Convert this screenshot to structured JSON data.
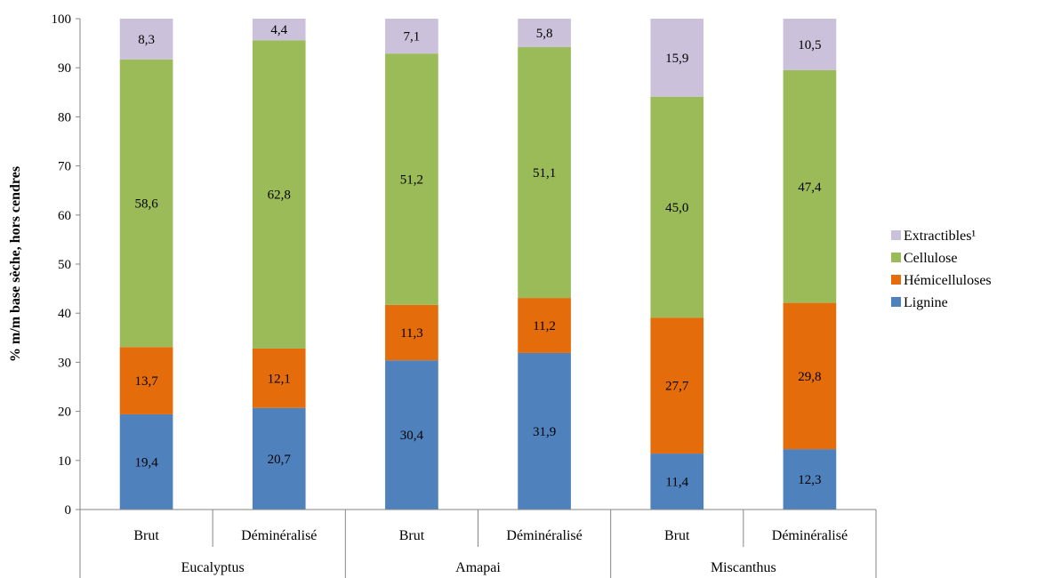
{
  "chart_data": {
    "type": "bar",
    "stacked": true,
    "title": "",
    "ylabel": "% m/m base sèche, hors cendres",
    "xlabel": "",
    "ylim": [
      0,
      100
    ],
    "yticks": [
      "0",
      "10",
      "20",
      "30",
      "40",
      "50",
      "60",
      "70",
      "80",
      "90",
      "100"
    ],
    "grid": false,
    "legend_position": "right",
    "categories": [
      "Brut",
      "Déminéralisé",
      "Brut",
      "Déminéralisé",
      "Brut",
      "Déminéralisé"
    ],
    "groups": [
      {
        "label": "Eucalyptus",
        "span": 2
      },
      {
        "label": "Amapai",
        "span": 2
      },
      {
        "label": "Miscanthus",
        "span": 2
      }
    ],
    "series": [
      {
        "name": "Lignine",
        "color": "#4f81bd",
        "values": [
          19.4,
          20.7,
          30.4,
          31.9,
          11.4,
          12.3
        ],
        "labels": [
          "19,4",
          "20,7",
          "30,4",
          "31,9",
          "11,4",
          "12,3"
        ]
      },
      {
        "name": "Hémicelluloses",
        "color": "#e46c0a",
        "values": [
          13.7,
          12.1,
          11.3,
          11.2,
          27.7,
          29.8
        ],
        "labels": [
          "13,7",
          "12,1",
          "11,3",
          "11,2",
          "27,7",
          "29,8"
        ]
      },
      {
        "name": "Cellulose",
        "color": "#9bbb59",
        "values": [
          58.6,
          62.8,
          51.2,
          51.1,
          45.0,
          47.4
        ],
        "labels": [
          "58,6",
          "62,8",
          "51,2",
          "51,1",
          "45,0",
          "47,4"
        ]
      },
      {
        "name": "Extractibles¹",
        "color": "#ccc1da",
        "values": [
          8.3,
          4.4,
          7.1,
          5.8,
          15.9,
          10.5
        ],
        "labels": [
          "8,3",
          "4,4",
          "7,1",
          "5,8",
          "15,9",
          "10,5"
        ]
      }
    ],
    "legend_order": [
      "Extractibles¹",
      "Cellulose",
      "Hémicelluloses",
      "Lignine"
    ]
  }
}
